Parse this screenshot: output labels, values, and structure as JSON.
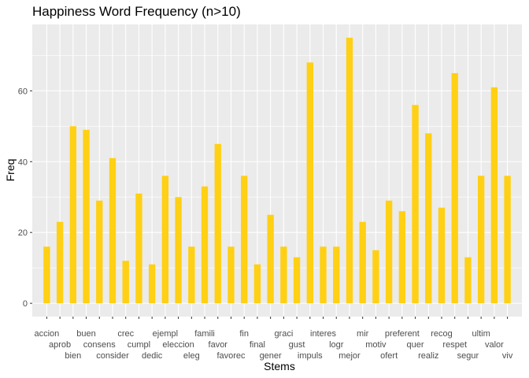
{
  "chart_data": {
    "type": "bar",
    "title": "Happiness Word Frequency (n>10)",
    "xlabel": "Stems",
    "ylabel": "Freq",
    "ylim": [
      -3.75,
      78.75
    ],
    "yticks": [
      0,
      20,
      40,
      60
    ],
    "grid": true,
    "bar_color": "#FFD014",
    "panel_background": "#EBEBEB",
    "grid_color": "#FFFFFF",
    "categories": [
      "accion",
      "aprob",
      "bien",
      "buen",
      "consens",
      "consider",
      "crec",
      "cumpl",
      "dedic",
      "ejempl",
      "eleccion",
      "eleg",
      "famili",
      "favor",
      "favorec",
      "fin",
      "final",
      "gener",
      "graci",
      "gust",
      "impuls",
      "interes",
      "logr",
      "mejor",
      "mir",
      "motiv",
      "ofert",
      "preferent",
      "quer",
      "realiz",
      "recog",
      "respet",
      "segur",
      "ultim",
      "valor",
      "viv"
    ],
    "values": [
      16,
      23,
      50,
      49,
      29,
      41,
      12,
      31,
      11,
      36,
      30,
      16,
      33,
      45,
      16,
      36,
      11,
      25,
      16,
      13,
      68,
      16,
      16,
      75,
      23,
      15,
      29,
      26,
      56,
      48,
      27,
      65,
      13,
      36,
      61,
      36
    ]
  }
}
